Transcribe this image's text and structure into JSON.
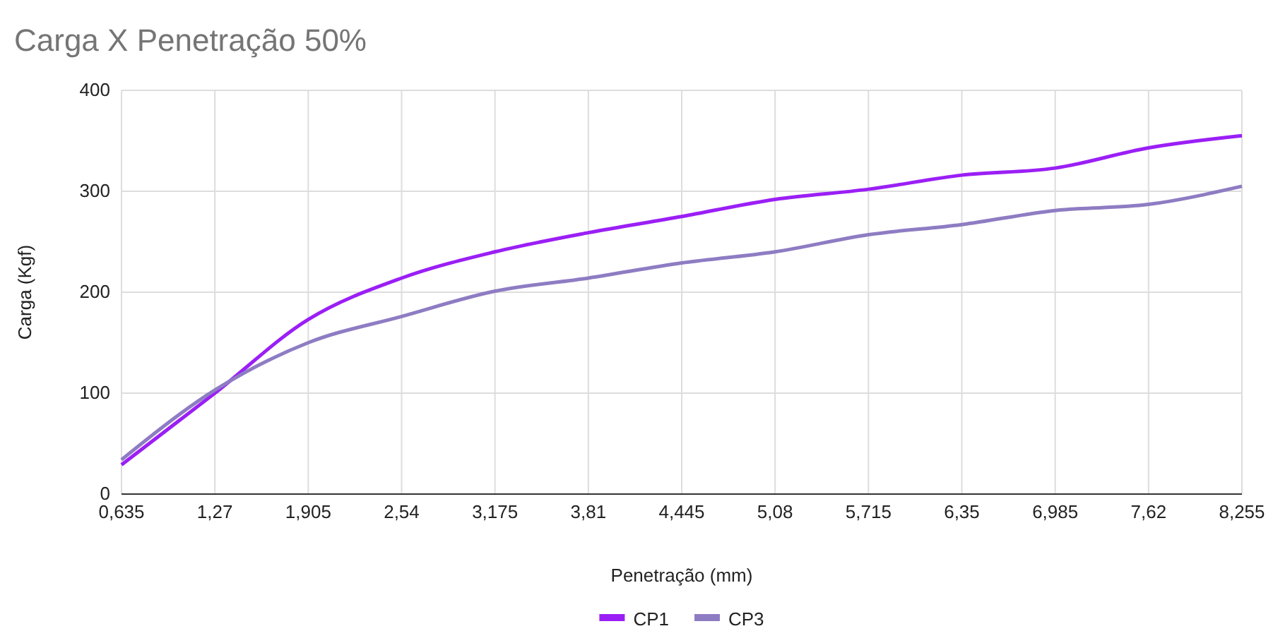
{
  "chart_data": {
    "type": "line",
    "title": "Carga X Penetração 50%",
    "xlabel": "Penetração (mm)",
    "ylabel": "Carga (Kgf)",
    "categories": [
      "0,635",
      "1,27",
      "1,905",
      "2,54",
      "3,175",
      "3,81",
      "4,445",
      "5,08",
      "5,715",
      "6,35",
      "6,985",
      "7,62",
      "8,255"
    ],
    "series": [
      {
        "name": "CP1",
        "color": "#9b1ff5",
        "values": [
          29,
          100,
          173,
          214,
          240,
          259,
          275,
          292,
          302,
          316,
          323,
          343,
          355
        ]
      },
      {
        "name": "CP3",
        "color": "#8e7cc3",
        "values": [
          34,
          103,
          150,
          176,
          201,
          214,
          229,
          240,
          257,
          267,
          281,
          287,
          305
        ]
      }
    ],
    "ylim": [
      0,
      400
    ],
    "yticks": [
      0,
      100,
      200,
      300,
      400
    ],
    "grid": true,
    "legend": "bottom",
    "marker": "none",
    "line_style": "solid"
  }
}
